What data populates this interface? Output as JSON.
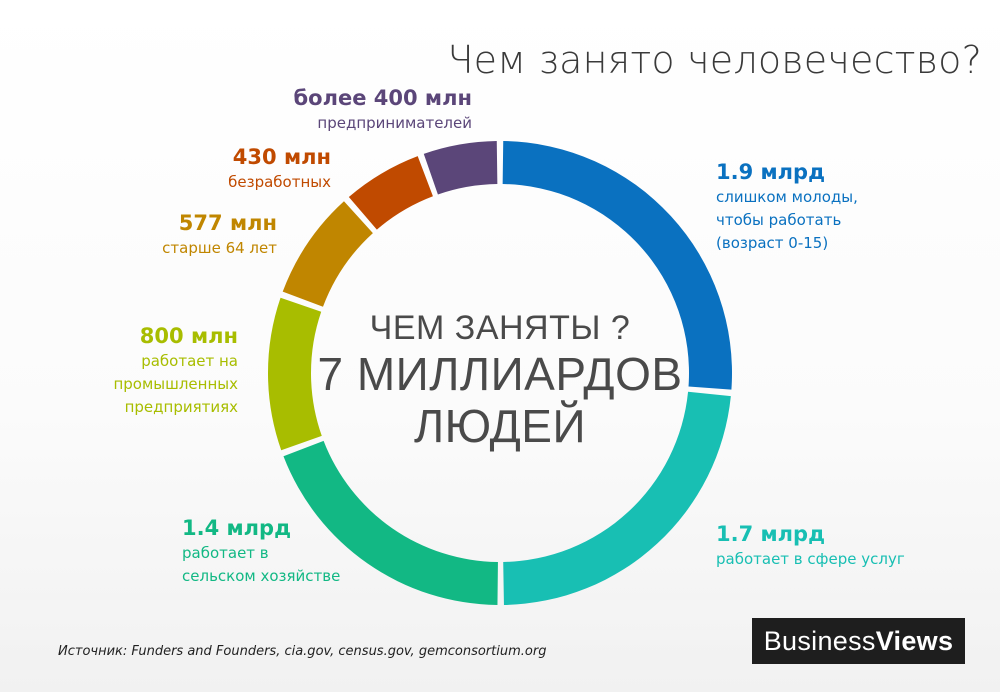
{
  "title": "Чем занято человечество?",
  "center": {
    "line1": "ЧЕМ ЗАНЯТЫ ?",
    "line2": "7 МИЛЛИАРДОВ",
    "line3": "ЛЮДЕЙ"
  },
  "source": "Источник: Funders and Founders, cia.gov, census.gov, gemconsortium.org",
  "logo": {
    "part1": "Business",
    "part2": "Views"
  },
  "chart_data": {
    "type": "pie",
    "donut": true,
    "slices": [
      {
        "value": 1.9,
        "value_label": "1.9 млрд",
        "label": "слишком молоды,\nчтобы работать\n(возраст 0-15)",
        "color": "#0a71c0"
      },
      {
        "value": 1.7,
        "value_label": "1.7 млрд",
        "label": "работает в сфере услуг",
        "color": "#18bfb3"
      },
      {
        "value": 1.4,
        "value_label": "1.4 млрд",
        "label": "работает в\nсельском хозяйстве",
        "color": "#12b884"
      },
      {
        "value": 0.8,
        "value_label": "800 млн",
        "label": "работает на\nпромышленных\nпредприятиях",
        "color": "#a8bd00"
      },
      {
        "value": 0.577,
        "value_label": "577 млн",
        "label": "старше 64 лет",
        "color": "#c08600"
      },
      {
        "value": 0.43,
        "value_label": "430 млн",
        "label": "безработных",
        "color": "#c04a00"
      },
      {
        "value": 0.4,
        "value_label": "более 400 млн",
        "label": "предпринимателей",
        "color": "#5b4679"
      }
    ]
  }
}
